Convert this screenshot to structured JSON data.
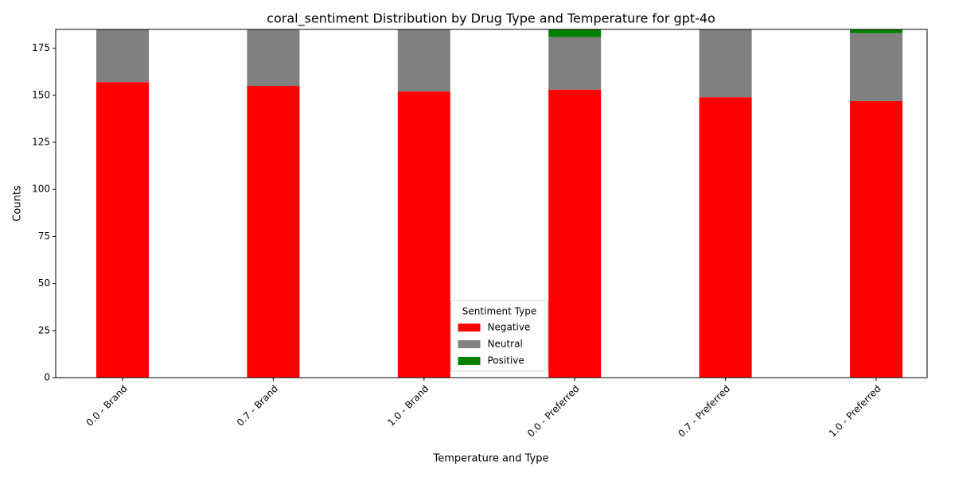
{
  "chart_data": {
    "type": "stacked_bar",
    "title": "coral_sentiment Distribution by Drug Type and Temperature for gpt-4o",
    "x_label": "Temperature and Type",
    "y_label": "Counts",
    "categories": [
      "0.0 - Brand",
      "0.7 - Brand",
      "1.0 - Brand",
      "0.0 - Preferred",
      "0.7 - Preferred",
      "1.0 - Preferred"
    ],
    "series": [
      {
        "name": "Negative",
        "color": "#ff0000",
        "values": [
          157,
          155,
          152,
          153,
          149,
          147
        ]
      },
      {
        "name": "Neutral",
        "color": "#808080",
        "values": [
          28,
          30,
          33,
          28,
          36,
          36
        ]
      },
      {
        "name": "Positive",
        "color": "#008000",
        "values": [
          0,
          0,
          0,
          4,
          0,
          2
        ]
      }
    ],
    "ylim": [
      0,
      185
    ],
    "yticks": [
      0,
      25,
      50,
      75,
      100,
      125,
      150,
      175
    ],
    "legend_title": "Sentiment Type",
    "legend": "lower center"
  }
}
